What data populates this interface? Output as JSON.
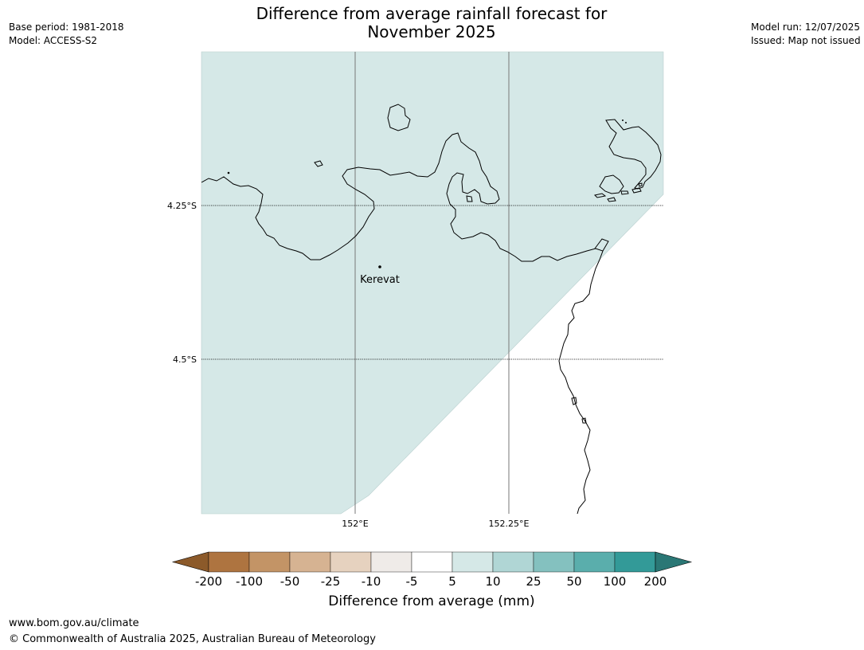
{
  "title_line1": "Difference from average rainfall forecast for",
  "title_line2": "November 2025",
  "meta_left": {
    "base_period": "Base period: 1981-2018",
    "model": "Model: ACCESS-S2"
  },
  "meta_right": {
    "model_run": "Model run: 12/07/2025",
    "issued": "Issued: Map not issued"
  },
  "map": {
    "lat_labels": [
      "4.25°S",
      "4.5°S"
    ],
    "lon_labels": [
      "152°E",
      "152.25°E"
    ],
    "place": "Kerevat",
    "fill_color": "#d5e8e7"
  },
  "colorbar": {
    "label": "Difference from average (mm)",
    "ticks": [
      "-200",
      "-100",
      "-50",
      "-25",
      "-10",
      "-5",
      "5",
      "10",
      "25",
      "50",
      "100",
      "200"
    ],
    "colors": [
      "#8c5a2a",
      "#ae7440",
      "#c39466",
      "#d6b392",
      "#e6d2bf",
      "#efebe8",
      "#ffffff",
      "#d5e8e7",
      "#b0d6d5",
      "#84c1bf",
      "#5aaeac",
      "#339a98",
      "#2a7775"
    ]
  },
  "footer": {
    "url": "www.bom.gov.au/climate",
    "copyright": "© Commonwealth of Australia 2025, Australian Bureau of Meteorology"
  }
}
